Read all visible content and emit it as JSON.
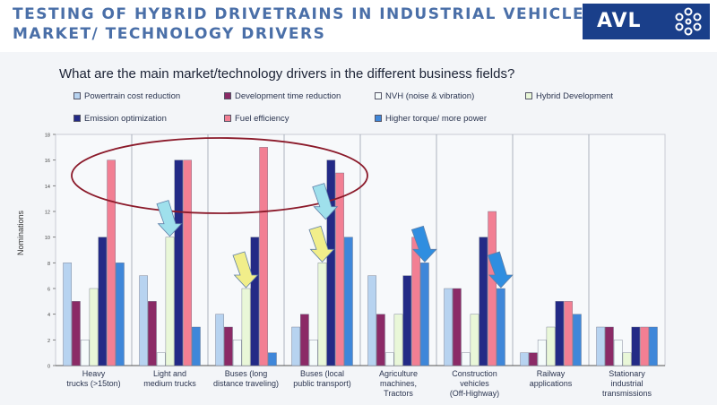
{
  "header": {
    "line1": "TESTING OF HYBRID DRIVETRAINS IN INDUSTRIAL VEHICLES",
    "line2": "MARKET/ TECHNOLOGY DRIVERS",
    "logo_text": "AVL"
  },
  "colors": {
    "header_text": "#4a6fa8",
    "logo_bg": "#1a3f8a",
    "annotation_ellipse": "#8b1a2a",
    "arrow_cyan": "#9fe0ec",
    "arrow_yellow": "#f1ee8a",
    "arrow_blue": "#2f8ee0"
  },
  "chart_data": {
    "type": "bar",
    "title": "What are the main market/technology drivers in the different business fields?",
    "ylabel": "Nominations",
    "ylim": [
      0,
      18
    ],
    "yticks": [
      "0",
      "2",
      "4",
      "6",
      "8",
      "10",
      "12",
      "14",
      "16",
      "18"
    ],
    "grid": "vertical separators between categories",
    "legend_position": "top",
    "categories": [
      [
        "Heavy",
        "trucks (>15ton)"
      ],
      [
        "Light and",
        "medium trucks"
      ],
      [
        "Buses (long",
        "distance traveling)"
      ],
      [
        "Buses (local",
        "public transport)"
      ],
      [
        "Agriculture",
        "machines,",
        "Tractors"
      ],
      [
        "Construction",
        "vehicles",
        "(Off-Highway)"
      ],
      [
        "Railway",
        "applications"
      ],
      [
        "Stationary",
        "industrial",
        "transmissions"
      ]
    ],
    "series": [
      {
        "name": "Powertrain cost reduction",
        "color": "#b7d3f0",
        "values": [
          8,
          7,
          4,
          3,
          7,
          6,
          1,
          3
        ]
      },
      {
        "name": "Development time reduction",
        "color": "#8b2a66",
        "values": [
          5,
          5,
          3,
          4,
          4,
          6,
          1,
          3
        ]
      },
      {
        "name": "NVH (noise & vibration)",
        "color": "#f5fbfb",
        "values": [
          2,
          1,
          2,
          2,
          1,
          1,
          2,
          2
        ]
      },
      {
        "name": "Hybrid Development",
        "color": "#e9f7d8",
        "values": [
          6,
          10,
          6,
          8,
          4,
          4,
          3,
          1
        ]
      },
      {
        "name": "Emission optimization",
        "color": "#232a86",
        "values": [
          10,
          16,
          10,
          16,
          7,
          10,
          5,
          3
        ]
      },
      {
        "name": "Fuel efficiency",
        "color": "#f27f93",
        "values": [
          16,
          16,
          17,
          15,
          10,
          12,
          5,
          3
        ]
      },
      {
        "name": "Higher torque/ more power",
        "color": "#3f87d9",
        "values": [
          8,
          3,
          1,
          10,
          8,
          6,
          4,
          3
        ]
      }
    ]
  }
}
